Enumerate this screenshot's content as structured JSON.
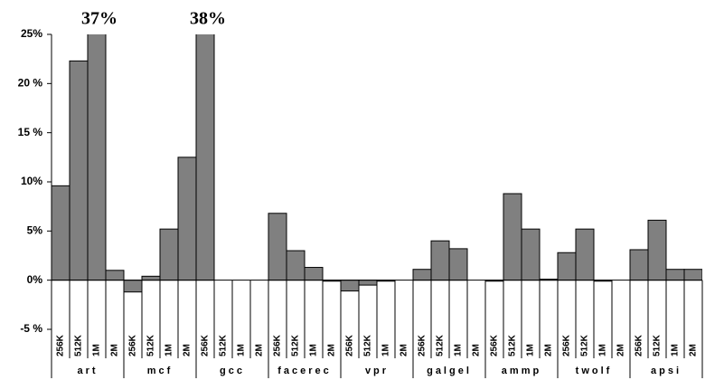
{
  "chart_data": {
    "type": "grouped-bar",
    "categories": [
      "art",
      "mcf",
      "gcc",
      "facerec",
      "vpr",
      "galgel",
      "ammp",
      "twolf",
      "apsi"
    ],
    "subcategories": [
      "256K",
      "512K",
      "1M",
      "2M"
    ],
    "values": [
      [
        9.6,
        22.3,
        37,
        1.0
      ],
      [
        -1.2,
        0.4,
        5.2,
        12.5
      ],
      [
        38,
        0,
        0,
        0
      ],
      [
        6.8,
        3.0,
        1.3,
        -0.1
      ],
      [
        -1.1,
        -0.5,
        -0.1,
        0
      ],
      [
        1.1,
        4.0,
        3.2,
        0
      ],
      [
        -0.1,
        8.8,
        5.2,
        0.1
      ],
      [
        2.8,
        5.2,
        -0.1,
        0
      ],
      [
        3.1,
        6.1,
        1.1,
        1.1
      ]
    ],
    "value_labels": [
      [
        null,
        null,
        "37%",
        null
      ],
      [
        null,
        null,
        null,
        null
      ],
      [
        "38%",
        null,
        null,
        null
      ],
      [
        null,
        null,
        null,
        null
      ],
      [
        null,
        null,
        null,
        null
      ],
      [
        null,
        null,
        null,
        null
      ],
      [
        null,
        null,
        null,
        null
      ],
      [
        null,
        null,
        null,
        null
      ],
      [
        null,
        null,
        null,
        null
      ]
    ],
    "color": "#808080",
    "ylim": [
      -5,
      25
    ],
    "yticks": [
      {
        "value": -5,
        "label": "-5 %"
      },
      {
        "value": 0,
        "label": "0%"
      },
      {
        "value": 5,
        "label": "5%"
      },
      {
        "value": 10,
        "label": "10%"
      },
      {
        "value": 15,
        "label": "15 %"
      },
      {
        "value": 20,
        "label": "20 %"
      },
      {
        "value": 25,
        "label": "25%"
      }
    ],
    "grid": false
  }
}
